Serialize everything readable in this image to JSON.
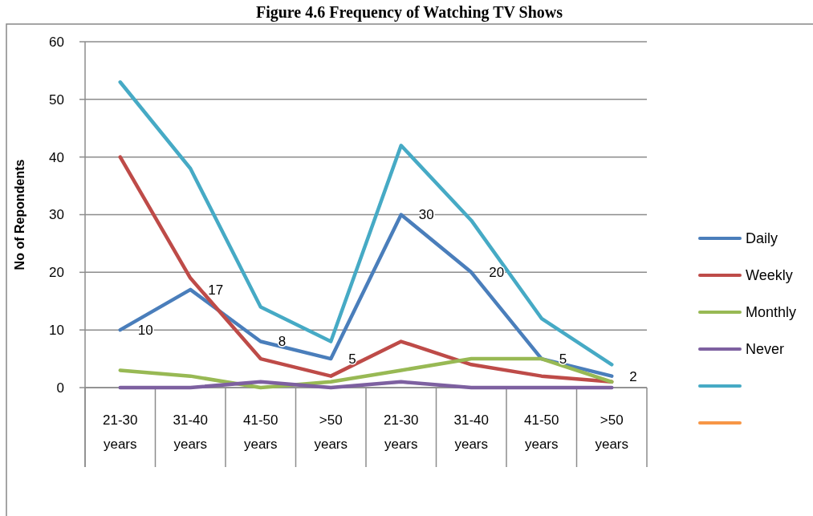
{
  "chart_data": {
    "type": "line",
    "title": "Figure 4.6 Frequency of Watching TV Shows",
    "ylabel": "No of Repondents",
    "categories": [
      "21-30 years",
      "31-40 years",
      "41-50 years",
      ">50 years",
      "21-30 years",
      "31-40 years",
      "41-50 years",
      ">50 years"
    ],
    "ylim": [
      0,
      60
    ],
    "yticks": [
      0,
      10,
      20,
      30,
      40,
      50,
      60
    ],
    "grid": "y",
    "legend": "right",
    "series": [
      {
        "name": "Daily",
        "color": "#4a7ebb",
        "values": [
          10,
          17,
          8,
          5,
          30,
          20,
          5,
          2
        ],
        "value_labels": [
          "10",
          "17",
          "8",
          "5",
          "30",
          "20",
          "5",
          "2"
        ]
      },
      {
        "name": "Weekly",
        "color": "#be4b48",
        "values": [
          40,
          19,
          5,
          2,
          8,
          4,
          2,
          1
        ]
      },
      {
        "name": "Monthly",
        "color": "#98b954",
        "values": [
          3,
          2,
          0,
          1,
          3,
          5,
          5,
          1
        ]
      },
      {
        "name": "Never",
        "color": "#7d60a0",
        "values": [
          0,
          0,
          1,
          0,
          1,
          0,
          0,
          0
        ]
      },
      {
        "color": "#46aac5",
        "values": [
          53,
          38,
          14,
          8,
          42,
          29,
          12,
          4
        ]
      },
      {
        "color": "#f79646",
        "values": [
          null,
          null,
          null,
          null,
          null,
          null,
          null,
          null
        ]
      }
    ]
  }
}
